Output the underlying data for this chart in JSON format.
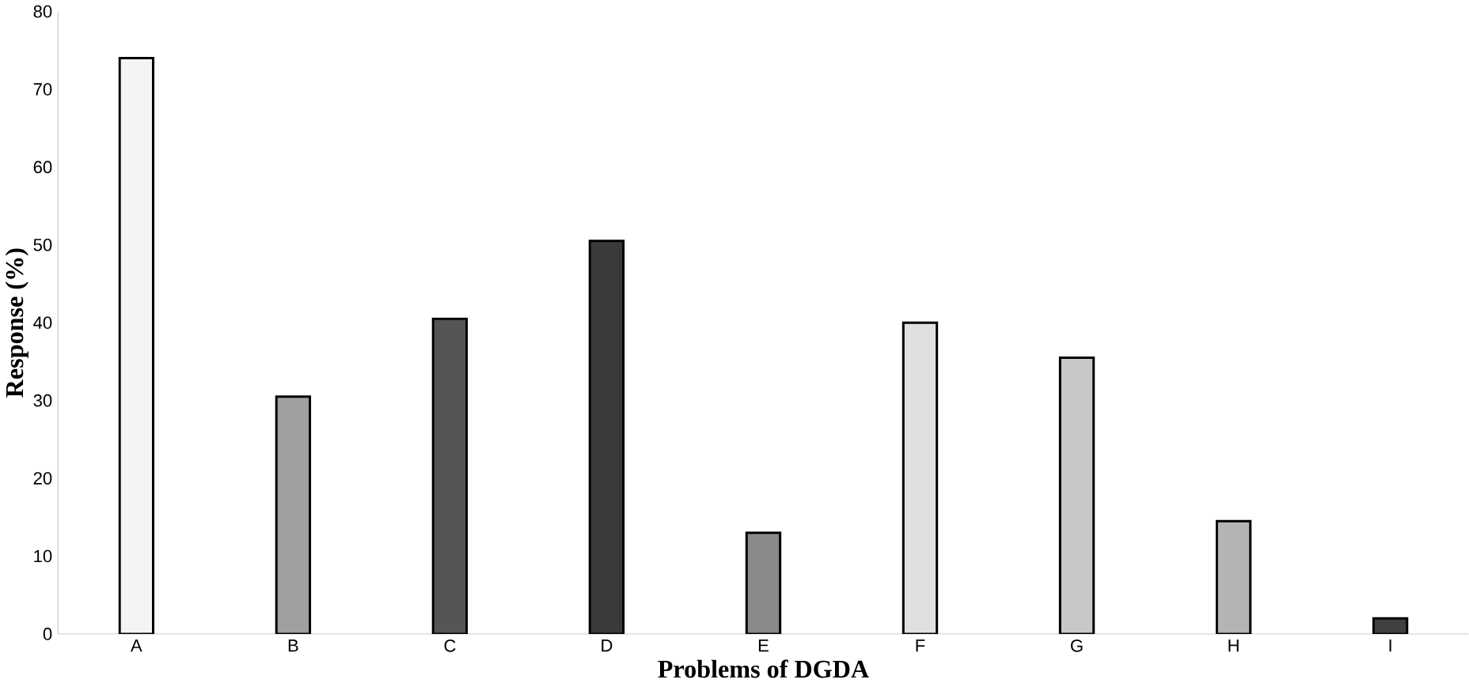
{
  "chart_data": {
    "type": "bar",
    "xlabel": "Problems of DGDA",
    "ylabel": "Response (%)",
    "categories": [
      "A",
      "B",
      "C",
      "D",
      "E",
      "F",
      "G",
      "H",
      "I"
    ],
    "values": [
      74,
      30.5,
      40.5,
      50.5,
      13,
      40,
      35.5,
      14.5,
      2
    ],
    "colors": [
      "#f4f4f4",
      "#a0a0a0",
      "#555555",
      "#3a3a3a",
      "#8a8a8a",
      "#e0e0e0",
      "#c8c8c8",
      "#b4b4b4",
      "#404040"
    ],
    "ylim": [
      0,
      80
    ],
    "yticks": [
      0,
      10,
      20,
      30,
      40,
      50,
      60,
      70,
      80
    ],
    "grid": false
  }
}
